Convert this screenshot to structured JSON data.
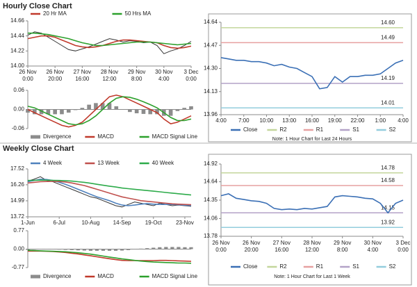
{
  "sections": [
    {
      "title": "Hourly Close Chart"
    },
    {
      "title": "Weekly Close Chart"
    }
  ],
  "chart_data": [
    {
      "type": "line",
      "legend": "top",
      "x": [
        0,
        1,
        2,
        3,
        4,
        5,
        6,
        7,
        8,
        9,
        10,
        11,
        12,
        13,
        14,
        15,
        16,
        17,
        18,
        19,
        20,
        21,
        22,
        23,
        24
      ],
      "xlim": [
        0,
        24
      ],
      "xticks": [
        {
          "value": 0,
          "label": [
            "26 Nov",
            "0:00"
          ]
        },
        {
          "value": 4,
          "label": [
            "26 Nov",
            "20:00"
          ]
        },
        {
          "value": 8,
          "label": [
            "27 Nov",
            "16:00"
          ]
        },
        {
          "value": 12,
          "label": [
            "28 Nov",
            "12:00"
          ]
        },
        {
          "value": 16,
          "label": [
            "29 Nov",
            "8:00"
          ]
        },
        {
          "value": 20,
          "label": [
            "30 Nov",
            "4:00"
          ]
        },
        {
          "value": 24,
          "label": [
            "3 Dec",
            "0:00"
          ]
        }
      ],
      "ylim": [
        14.0,
        14.66
      ],
      "yticks": [
        {
          "value": 14.0,
          "label": "14.00"
        },
        14.22,
        14.44,
        14.66
      ],
      "series": [
        {
          "color": "#333333",
          "values": [
            14.45,
            14.5,
            14.48,
            14.42,
            14.36,
            14.3,
            14.24,
            14.22,
            14.25,
            14.28,
            14.32,
            14.36,
            14.4,
            14.38,
            14.35,
            14.37,
            14.36,
            14.34,
            14.35,
            14.3,
            14.18,
            14.22,
            14.25,
            14.3,
            14.36
          ]
        },
        {
          "name": "20 Hr MA",
          "color": "#c0392b",
          "values": [
            14.4,
            14.42,
            14.44,
            14.44,
            14.42,
            14.38,
            14.34,
            14.3,
            14.28,
            14.27,
            14.28,
            14.3,
            14.33,
            14.36,
            14.38,
            14.38,
            14.37,
            14.36,
            14.35,
            14.34,
            14.3,
            14.27,
            14.26,
            14.27,
            14.29
          ]
        },
        {
          "name": "50 Hrs MA",
          "color": "#2ca02c",
          "values": [
            14.48,
            14.48,
            14.47,
            14.46,
            14.44,
            14.42,
            14.4,
            14.37,
            14.34,
            14.32,
            14.3,
            14.3,
            14.31,
            14.32,
            14.33,
            14.34,
            14.35,
            14.35,
            14.35,
            14.34,
            14.33,
            14.32,
            14.31,
            14.32,
            14.33
          ]
        }
      ]
    },
    {
      "type": "line",
      "legend": "bottom",
      "x": [
        0,
        1,
        2,
        3,
        4,
        5,
        6,
        7,
        8,
        9,
        10,
        11,
        12,
        13,
        14,
        15,
        16,
        17,
        18,
        19,
        20,
        21,
        22,
        23,
        24
      ],
      "xlim": [
        0,
        24
      ],
      "ylim": [
        -0.06,
        0.06
      ],
      "yticks": [
        -0.06,
        {
          "value": 0,
          "label": "0.00"
        },
        0.06
      ],
      "series": [
        {
          "name": "Divergence",
          "color": "#8c8c8c",
          "style": "bar",
          "values": [
            -0.01,
            -0.015,
            -0.015,
            -0.015,
            -0.015,
            -0.015,
            -0.01,
            -0.002,
            0.005,
            0.015,
            0.02,
            0.02,
            0.02,
            0.01,
            0,
            -0.008,
            -0.012,
            -0.014,
            -0.015,
            -0.015,
            -0.02,
            -0.02,
            -0.005,
            0.005,
            0.01
          ]
        },
        {
          "name": "MACD",
          "color": "#c0392b",
          "values": [
            0,
            -0.01,
            -0.02,
            -0.03,
            -0.04,
            -0.05,
            -0.055,
            -0.05,
            -0.04,
            -0.02,
            0,
            0.02,
            0.04,
            0.045,
            0.04,
            0.03,
            0.02,
            0.01,
            0,
            -0.01,
            -0.03,
            -0.045,
            -0.04,
            -0.03,
            -0.02
          ]
        },
        {
          "name": "MACD Signal Line",
          "color": "#2ca02c",
          "values": [
            0.01,
            0.005,
            -0.005,
            -0.015,
            -0.025,
            -0.035,
            -0.045,
            -0.048,
            -0.045,
            -0.035,
            -0.02,
            0,
            0.02,
            0.035,
            0.04,
            0.038,
            0.032,
            0.024,
            0.015,
            0.005,
            -0.01,
            -0.025,
            -0.035,
            -0.035,
            -0.03
          ]
        }
      ]
    },
    {
      "type": "line",
      "legend": "bottom",
      "note": "Note: 1 Hour Chart for Last 24 Hours",
      "x": [
        0,
        1,
        2,
        3,
        4,
        5,
        6,
        7,
        8,
        9,
        10,
        11,
        12,
        13,
        14,
        15,
        16,
        17,
        18,
        19,
        20,
        21,
        22,
        23,
        24
      ],
      "xlim": [
        0,
        24
      ],
      "xticks": [
        {
          "value": 0,
          "label": "4:00"
        },
        {
          "value": 3,
          "label": "7:00"
        },
        {
          "value": 6,
          "label": "10:00"
        },
        {
          "value": 9,
          "label": "13:00"
        },
        {
          "value": 12,
          "label": "16:00"
        },
        {
          "value": 15,
          "label": "19:00"
        },
        {
          "value": 18,
          "label": "22:00"
        },
        {
          "value": 21,
          "label": "1:00"
        },
        {
          "value": 24,
          "label": "4:00"
        }
      ],
      "ylim": [
        13.96,
        14.64
      ],
      "yticks": [
        13.96,
        14.13,
        {
          "value": 14.3,
          "label": "14.30"
        },
        14.47,
        14.64
      ],
      "series": [
        {
          "name": "Close",
          "color": "#3a6fb5",
          "values": [
            14.38,
            14.37,
            14.36,
            14.36,
            14.35,
            14.35,
            14.34,
            14.32,
            14.33,
            14.31,
            14.3,
            14.27,
            14.24,
            14.15,
            14.16,
            14.24,
            14.2,
            14.24,
            14.24,
            14.25,
            14.25,
            14.26,
            14.3,
            14.34,
            14.36
          ]
        }
      ],
      "levels": [
        {
          "name": "R2",
          "color": "#c3d69b",
          "value": 14.6,
          "label": "14.60"
        },
        {
          "name": "R1",
          "color": "#e6a0a0",
          "value": 14.49,
          "label": "14.49"
        },
        {
          "name": "S1",
          "color": "#b3a2c7",
          "value": 14.19,
          "label": "14.19"
        },
        {
          "name": "S2",
          "color": "#93cddd",
          "value": 14.01,
          "label": "14.01"
        }
      ]
    },
    {
      "type": "line",
      "legend": "top",
      "x": [
        0,
        1,
        2,
        3,
        4,
        5,
        6,
        7,
        8,
        9,
        10,
        11,
        12,
        13,
        14,
        15,
        16,
        17,
        18,
        19,
        20,
        21,
        22,
        23,
        24,
        25,
        26
      ],
      "xlim": [
        0,
        26
      ],
      "xticks": [
        {
          "value": 0,
          "label": "1-Jun"
        },
        {
          "value": 5,
          "label": "6-Jul"
        },
        {
          "value": 10,
          "label": "10-Aug"
        },
        {
          "value": 15,
          "label": "14-Sep"
        },
        {
          "value": 20,
          "label": "19-Oct"
        },
        {
          "value": 25,
          "label": "23-Nov"
        }
      ],
      "ylim": [
        13.72,
        17.52
      ],
      "yticks": [
        13.72,
        14.99,
        16.26,
        17.52
      ],
      "series": [
        {
          "color": "#333333",
          "values": [
            16.55,
            16.7,
            16.9,
            16.6,
            16.5,
            16.3,
            16.1,
            15.9,
            15.7,
            15.5,
            15.3,
            15.2,
            15.0,
            14.8,
            14.6,
            14.5,
            14.7,
            14.9,
            14.8,
            14.7,
            14.6,
            14.8,
            14.7,
            14.6,
            14.65,
            14.6,
            14.55
          ]
        },
        {
          "name": "4 Week",
          "color": "#4f81bd",
          "values": [
            16.5,
            16.6,
            16.7,
            16.68,
            16.6,
            16.45,
            16.3,
            16.1,
            15.9,
            15.7,
            15.5,
            15.3,
            15.15,
            15.0,
            14.8,
            14.65,
            14.6,
            14.65,
            14.72,
            14.77,
            14.72,
            14.7,
            14.7,
            14.7,
            14.68,
            14.64,
            14.6
          ]
        },
        {
          "name": "13 Week",
          "color": "#c0504d",
          "values": [
            16.4,
            16.45,
            16.5,
            16.52,
            16.53,
            16.52,
            16.48,
            16.4,
            16.3,
            16.2,
            16.05,
            15.9,
            15.75,
            15.6,
            15.45,
            15.3,
            15.2,
            15.1,
            15.0,
            14.95,
            14.9,
            14.85,
            14.8,
            14.75,
            14.72,
            14.7,
            14.68
          ]
        },
        {
          "name": "40 Week",
          "color": "#2dab4a",
          "values": [
            16.6,
            16.61,
            16.62,
            16.62,
            16.61,
            16.6,
            16.58,
            16.55,
            16.5,
            16.45,
            16.38,
            16.3,
            16.22,
            16.15,
            16.08,
            16.0,
            15.95,
            15.9,
            15.85,
            15.8,
            15.75,
            15.7,
            15.65,
            15.6,
            15.55,
            15.5,
            15.45
          ]
        }
      ]
    },
    {
      "type": "line",
      "legend": "bottom",
      "x": [
        0,
        1,
        2,
        3,
        4,
        5,
        6,
        7,
        8,
        9,
        10,
        11,
        12,
        13,
        14,
        15,
        16,
        17,
        18,
        19,
        20,
        21,
        22,
        23,
        24,
        25,
        26
      ],
      "xlim": [
        0,
        26
      ],
      "ylim": [
        -0.77,
        0.77
      ],
      "yticks": [
        -0.77,
        {
          "value": 0,
          "label": "0.00"
        },
        0.77
      ],
      "series": [
        {
          "name": "Divergence",
          "color": "#8c8c8c",
          "style": "bar",
          "values": [
            -0.03,
            -0.02,
            -0.01,
            -0.01,
            -0.01,
            -0.02,
            -0.03,
            -0.04,
            -0.05,
            -0.06,
            -0.07,
            -0.07,
            -0.07,
            -0.07,
            -0.07,
            -0.06,
            -0.04,
            -0.01,
            0.02,
            0.04,
            0.06,
            0.08,
            0.09,
            0.09,
            0.09,
            0.08,
            0.08
          ]
        },
        {
          "name": "MACD",
          "color": "#c0392b",
          "values": [
            -0.08,
            -0.08,
            -0.08,
            -0.09,
            -0.1,
            -0.12,
            -0.14,
            -0.17,
            -0.2,
            -0.24,
            -0.28,
            -0.32,
            -0.36,
            -0.4,
            -0.44,
            -0.47,
            -0.48,
            -0.48,
            -0.48,
            -0.48,
            -0.48,
            -0.47,
            -0.47,
            -0.48,
            -0.49,
            -0.5,
            -0.51
          ]
        },
        {
          "name": "MACD Signal Line",
          "color": "#2ca02c",
          "values": [
            -0.05,
            -0.06,
            -0.07,
            -0.08,
            -0.09,
            -0.1,
            -0.11,
            -0.13,
            -0.15,
            -0.18,
            -0.21,
            -0.25,
            -0.29,
            -0.33,
            -0.37,
            -0.41,
            -0.44,
            -0.47,
            -0.5,
            -0.52,
            -0.54,
            -0.55,
            -0.56,
            -0.57,
            -0.58,
            -0.58,
            -0.59
          ]
        }
      ]
    },
    {
      "type": "line",
      "legend": "bottom",
      "note": "Note: 1 Hour Chart for Last 1 Week",
      "x": [
        0,
        1,
        2,
        3,
        4,
        5,
        6,
        7,
        8,
        9,
        10,
        11,
        12,
        13,
        14,
        15,
        16,
        17,
        18,
        19,
        20,
        21,
        22,
        23,
        24
      ],
      "xlim": [
        0,
        24
      ],
      "xticks": [
        {
          "value": 0,
          "label": [
            "26 Nov",
            "0:00"
          ]
        },
        {
          "value": 4,
          "label": [
            "26 Nov",
            "20:00"
          ]
        },
        {
          "value": 8,
          "label": [
            "27 Nov",
            "16:00"
          ]
        },
        {
          "value": 12,
          "label": [
            "28 Nov",
            "12:00"
          ]
        },
        {
          "value": 16,
          "label": [
            "29 Nov",
            "8:00"
          ]
        },
        {
          "value": 20,
          "label": [
            "30 Nov",
            "4:00"
          ]
        },
        {
          "value": 24,
          "label": [
            "3 Dec",
            "0:00"
          ]
        }
      ],
      "ylim": [
        13.78,
        14.92
      ],
      "yticks": [
        13.78,
        14.06,
        14.35,
        14.64,
        14.92
      ],
      "series": [
        {
          "name": "Close",
          "color": "#3a6fb5",
          "values": [
            14.42,
            14.45,
            14.38,
            14.36,
            14.34,
            14.33,
            14.3,
            14.22,
            14.2,
            14.21,
            14.2,
            14.22,
            14.21,
            14.23,
            14.25,
            14.4,
            14.42,
            14.41,
            14.4,
            14.38,
            14.37,
            14.3,
            14.15,
            14.3,
            14.35
          ]
        }
      ],
      "levels": [
        {
          "name": "R2",
          "color": "#c3d69b",
          "value": 14.78,
          "label": "14.78"
        },
        {
          "name": "R1",
          "color": "#e6a0a0",
          "value": 14.58,
          "label": "14.58"
        },
        {
          "name": "S1",
          "color": "#b3a2c7",
          "value": 14.15,
          "label": "14.15"
        },
        {
          "name": "S2",
          "color": "#93cddd",
          "value": 13.92,
          "label": "13.92"
        }
      ]
    }
  ]
}
